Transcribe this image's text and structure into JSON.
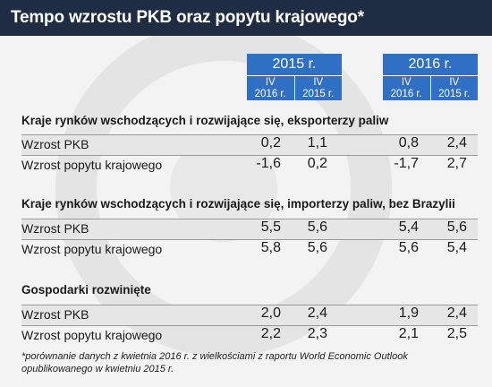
{
  "title": "Tempo wzrostu PKB oraz popytu krajowego*",
  "headers": [
    {
      "year": "2015 r.",
      "subs": [
        "IV\n2016 r.",
        "IV\n2015 r."
      ]
    },
    {
      "year": "2016 r.",
      "subs": [
        "IV\n2016 r.",
        "IV\n2015 r."
      ]
    }
  ],
  "sections": [
    {
      "title": "Kraje rynków wschodzących i rozwijające się, eksporterzy paliw",
      "rows": [
        {
          "label": "Wzrost PKB",
          "values": [
            "0,2",
            "1,1",
            "0,8",
            "2,4"
          ]
        },
        {
          "label": "Wzrost popytu krajowego",
          "values": [
            "-1,6",
            "0,2",
            "-1,7",
            "2,7"
          ]
        }
      ]
    },
    {
      "title": "Kraje rynków wschodzących i rozwijające się, importerzy paliw, bez Brazylii",
      "rows": [
        {
          "label": "Wzrost PKB",
          "values": [
            "5,5",
            "5,6",
            "5,4",
            "5,6"
          ]
        },
        {
          "label": "Wzrost popytu krajowego",
          "values": [
            "5,8",
            "5,6",
            "5,6",
            "5,4"
          ]
        }
      ]
    },
    {
      "title": "Gospodarki rozwinięte",
      "rows": [
        {
          "label": "Wzrost PKB",
          "values": [
            "2,0",
            "2,4",
            "1,9",
            "2,4"
          ]
        },
        {
          "label": "Wzrost popytu krajowego",
          "values": [
            "2,2",
            "2,3",
            "2,1",
            "2,5"
          ]
        }
      ]
    }
  ],
  "footnote": "*porównanie danych z kwietnia 2016 r. z wielkościami z raportu World Economic Outlook opublikowanego w kwietniu 2015 r.",
  "colors": {
    "title_bg": "#1f2d44",
    "header_bg": "#2f6fc4",
    "watermark": "#e2e2e2"
  }
}
